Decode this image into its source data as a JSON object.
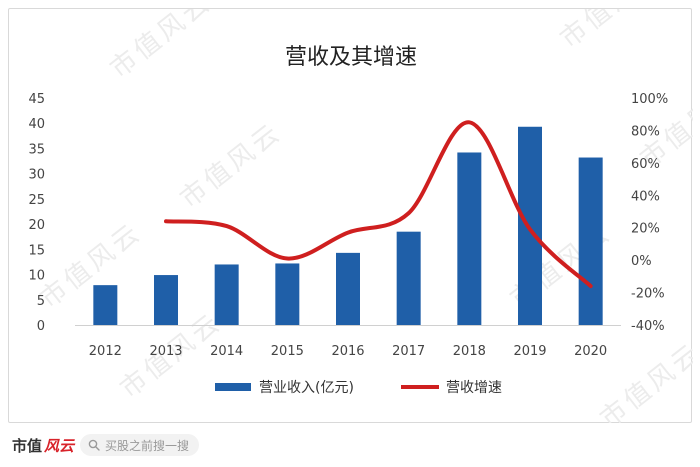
{
  "chart_data": {
    "type": "bar+line",
    "title": "营收及其增速",
    "categories": [
      "2012",
      "2013",
      "2014",
      "2015",
      "2016",
      "2017",
      "2018",
      "2019",
      "2020"
    ],
    "series": [
      {
        "name": "营业收入(亿元)",
        "type": "bar",
        "axis": "left",
        "color": "#1f5fa8",
        "values": [
          7.9,
          9.9,
          12.0,
          12.2,
          14.3,
          18.5,
          34.2,
          39.3,
          33.2
        ]
      },
      {
        "name": "营收增速",
        "type": "line",
        "axis": "right",
        "color": "#cf1f1f",
        "values": [
          null,
          24,
          21,
          1,
          17,
          29,
          85,
          19,
          -16
        ]
      }
    ],
    "left_axis": {
      "ticks": [
        "0",
        "5",
        "10",
        "15",
        "20",
        "25",
        "30",
        "35",
        "40",
        "45"
      ],
      "ylim": [
        0,
        45
      ]
    },
    "right_axis": {
      "ticks": [
        "-40%",
        "-20%",
        "0%",
        "20%",
        "40%",
        "60%",
        "80%",
        "100%"
      ],
      "ylim": [
        -40,
        100
      ]
    },
    "grid": false,
    "legend_position": "bottom"
  },
  "watermark": {
    "text": "市值风云"
  },
  "footer": {
    "logo_text": "市值",
    "logo_script": "风云",
    "search_placeholder": "买股之前搜一搜",
    "icon": "search-icon"
  }
}
